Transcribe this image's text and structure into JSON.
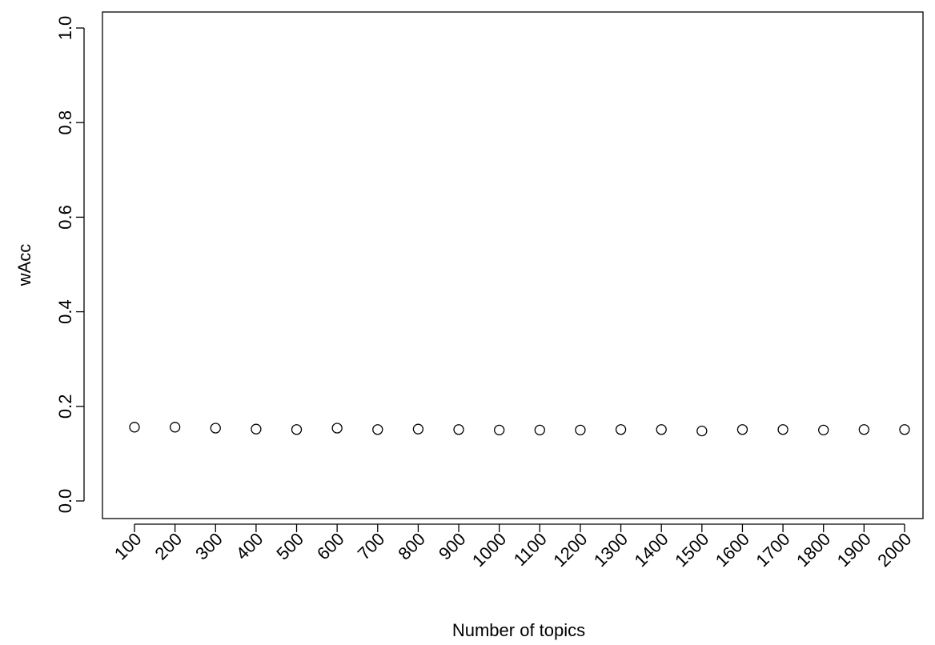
{
  "chart_data": {
    "type": "scatter",
    "title": "",
    "xlabel": "Number of topics",
    "ylabel": "wAcc",
    "x": [
      "100",
      "200",
      "300",
      "400",
      "500",
      "600",
      "700",
      "800",
      "900",
      "1000",
      "1100",
      "1200",
      "1300",
      "1400",
      "1500",
      "1600",
      "1700",
      "1800",
      "1900",
      "2000"
    ],
    "y": [
      0.156,
      0.156,
      0.154,
      0.152,
      0.151,
      0.154,
      0.151,
      0.152,
      0.151,
      0.15,
      0.15,
      0.15,
      0.151,
      0.151,
      0.148,
      0.151,
      0.151,
      0.15,
      0.151,
      0.151
    ],
    "ylim": [
      0,
      1
    ],
    "yticks": [
      "0.0",
      "0.2",
      "0.4",
      "0.6",
      "0.8",
      "1.0"
    ],
    "grid": false,
    "legend": "none",
    "marker": "open-circle",
    "colors": {
      "marker": "#000000",
      "axis": "#000000"
    }
  }
}
